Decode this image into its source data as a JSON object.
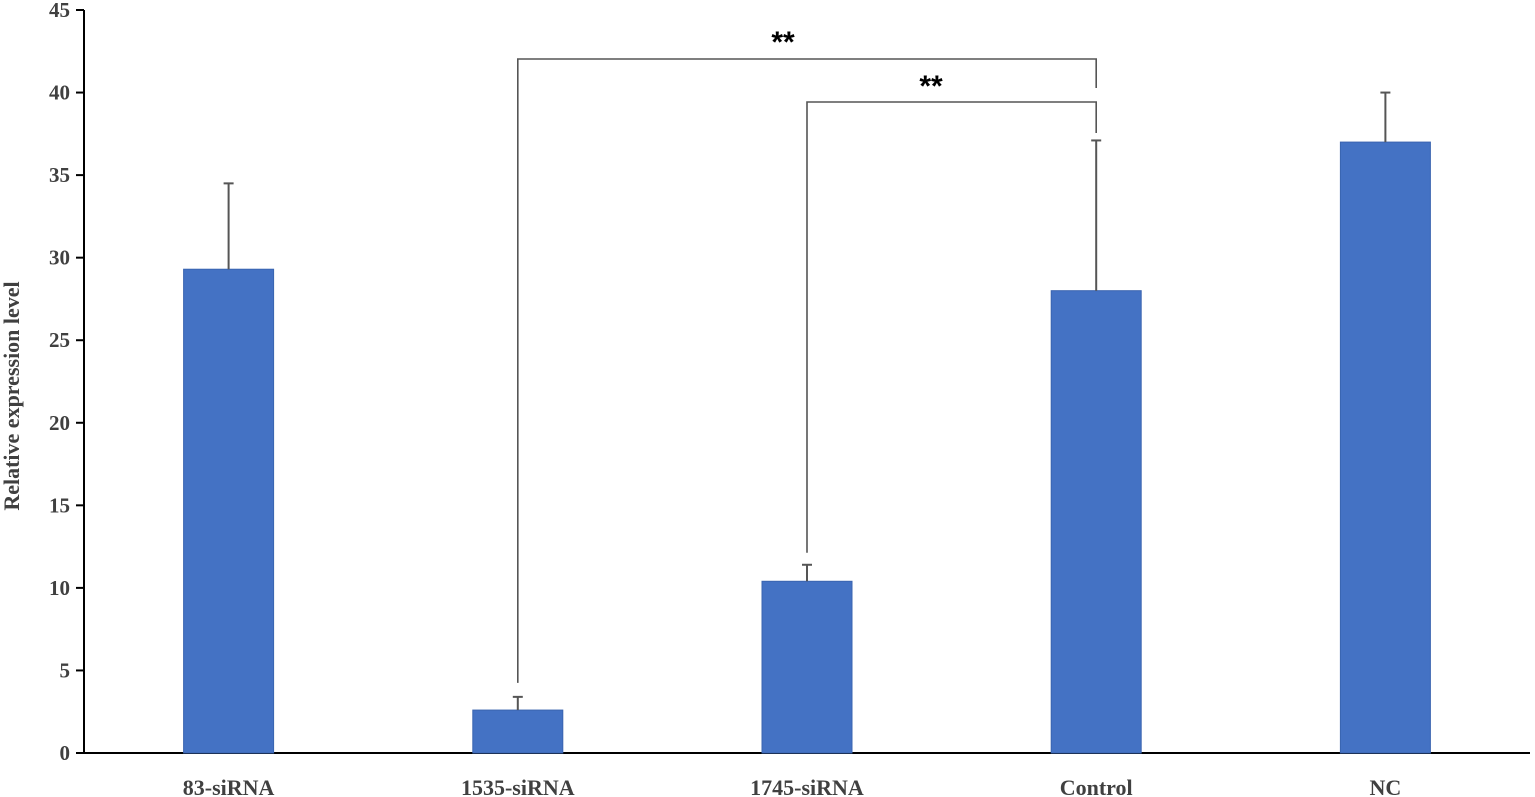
{
  "chart_data": {
    "type": "bar",
    "ylabel": "Relative  expression level",
    "xlabel": "",
    "title": "",
    "ylim": [
      0,
      45
    ],
    "yticks": [
      0,
      5,
      10,
      15,
      20,
      25,
      30,
      35,
      40,
      45
    ],
    "categories": [
      "83-siRNA",
      "1535-siRNA",
      "1745-siRNA",
      "Control",
      "NC"
    ],
    "values": [
      29.3,
      2.6,
      10.4,
      28.0,
      37.0
    ],
    "error_upper": [
      5.2,
      0.8,
      1.0,
      9.1,
      3.0
    ],
    "bar_color": "#4472C4",
    "grid": false,
    "legend": "none",
    "significance": [
      {
        "from": "1535-siRNA",
        "to": "Control",
        "label": "**"
      },
      {
        "from": "1745-siRNA",
        "to": "Control",
        "label": "**"
      }
    ]
  }
}
